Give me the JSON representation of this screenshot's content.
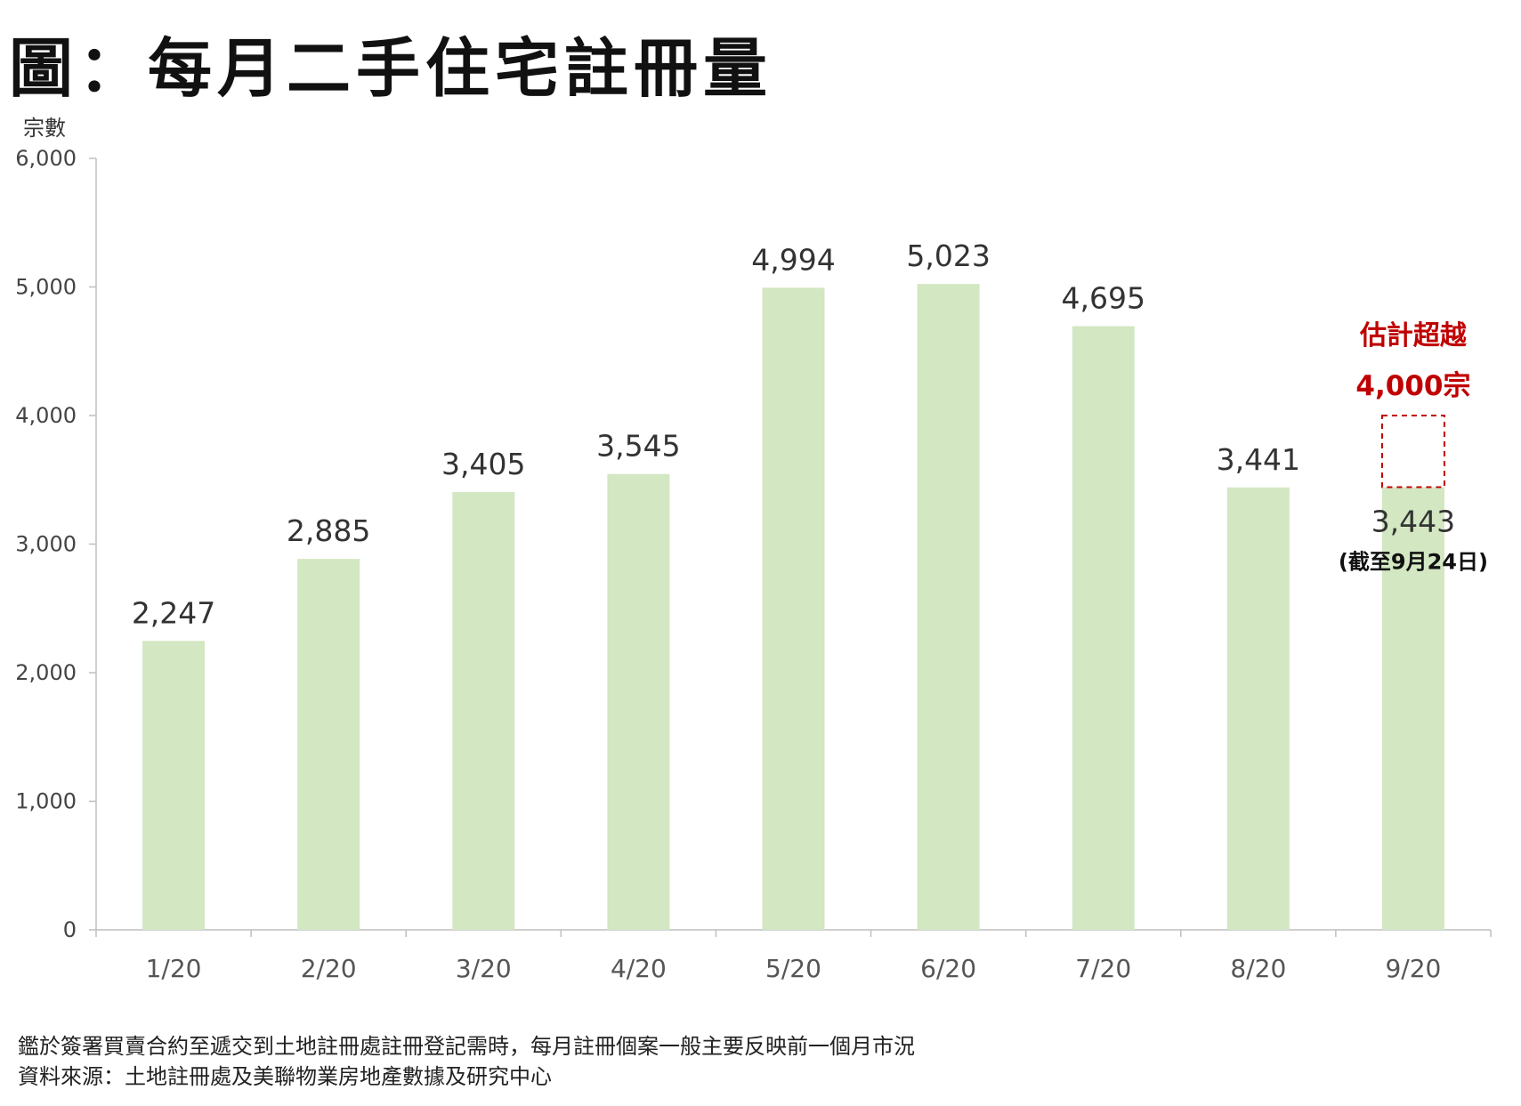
{
  "title": "圖：每月二手住宅註冊量",
  "chart_data": {
    "type": "bar",
    "ylabel": "宗數",
    "categories": [
      "1/20",
      "2/20",
      "3/20",
      "4/20",
      "5/20",
      "6/20",
      "7/20",
      "8/20",
      "9/20"
    ],
    "values": [
      2247,
      2885,
      3405,
      3545,
      4994,
      5023,
      4695,
      3441,
      3443
    ],
    "data_labels": [
      "2,247",
      "2,885",
      "3,405",
      "3,545",
      "4,994",
      "5,023",
      "4,695",
      "3,441",
      "3,443"
    ],
    "yticks": [
      0,
      1000,
      2000,
      3000,
      4000,
      5000,
      6000
    ],
    "ytick_labels": [
      "0",
      "1,000",
      "2,000",
      "3,000",
      "4,000",
      "5,000",
      "6,000"
    ],
    "ylim": [
      0,
      6000
    ],
    "bar_color": "#d2e7c2",
    "grid": false,
    "annotation": {
      "category": "9/20",
      "estimate_value": 4000,
      "text_line1": "估計超越",
      "text_line2": "4,000宗",
      "note": "(截至9月24日)",
      "color": "#c00000"
    }
  },
  "notes": {
    "line1": "鑑於簽署買賣合約至遞交到土地註冊處註冊登記需時，每月註冊個案一般主要反映前一個月市況",
    "line2": "資料來源：土地註冊處及美聯物業房地產數據及研究中心"
  }
}
